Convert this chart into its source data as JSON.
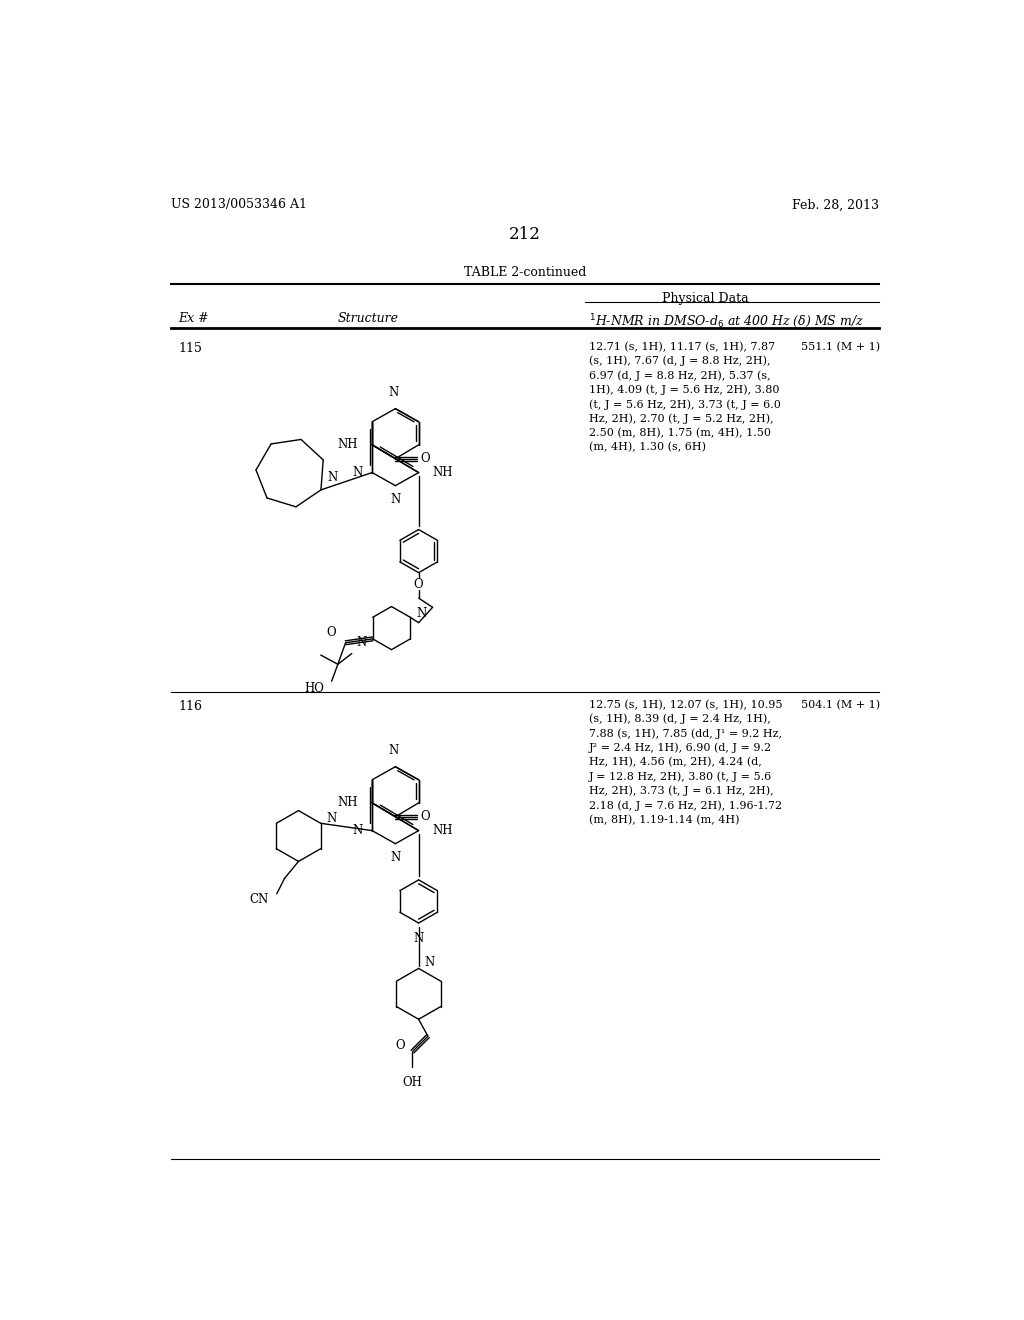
{
  "page_number": "212",
  "left_header": "US 2013/0053346 A1",
  "right_header": "Feb. 28, 2013",
  "table_title": "TABLE 2-continued",
  "physical_data_label": "Physical Data",
  "col_ex": "Ex #",
  "col_structure": "Structure",
  "col_nmr": "H-NMR in DMSO-d at 400 Hz (δ) MS m/z",
  "entries": [
    {
      "ex_num": "115",
      "nmr_text": "12.71 (s, 1H), 11.17 (s, 1H), 7.87\n(s, 1H), 7.67 (d, J = 8.8 Hz, 2H),\n6.97 (d, J = 8.8 Hz, 2H), 5.37 (s,\n1H), 4.09 (t, J = 5.6 Hz, 2H), 3.80\n(t, J = 5.6 Hz, 2H), 3.73 (t, J = 6.0\nHz, 2H), 2.70 (t, J = 5.2 Hz, 2H),\n2.50 (m, 8H), 1.75 (m, 4H), 1.50\n(m, 4H), 1.30 (s, 6H)",
      "ms_text": "551.1 (M + 1)"
    },
    {
      "ex_num": "116",
      "nmr_text": "12.75 (s, 1H), 12.07 (s, 1H), 10.95\n(s, 1H), 8.39 (d, J = 2.4 Hz, 1H),\n7.88 (s, 1H), 7.85 (dd, J¹ = 9.2 Hz,\nJ² = 2.4 Hz, 1H), 6.90 (d, J = 9.2\nHz, 1H), 4.56 (m, 2H), 4.24 (d,\nJ = 12.8 Hz, 2H), 3.80 (t, J = 5.6\nHz, 2H), 3.73 (t, J = 6.1 Hz, 2H),\n2.18 (d, J = 7.6 Hz, 2H), 1.96-1.72\n(m, 8H), 1.19-1.14 (m, 4H)",
      "ms_text": "504.1 (M + 1)"
    }
  ],
  "background_color": "#ffffff"
}
